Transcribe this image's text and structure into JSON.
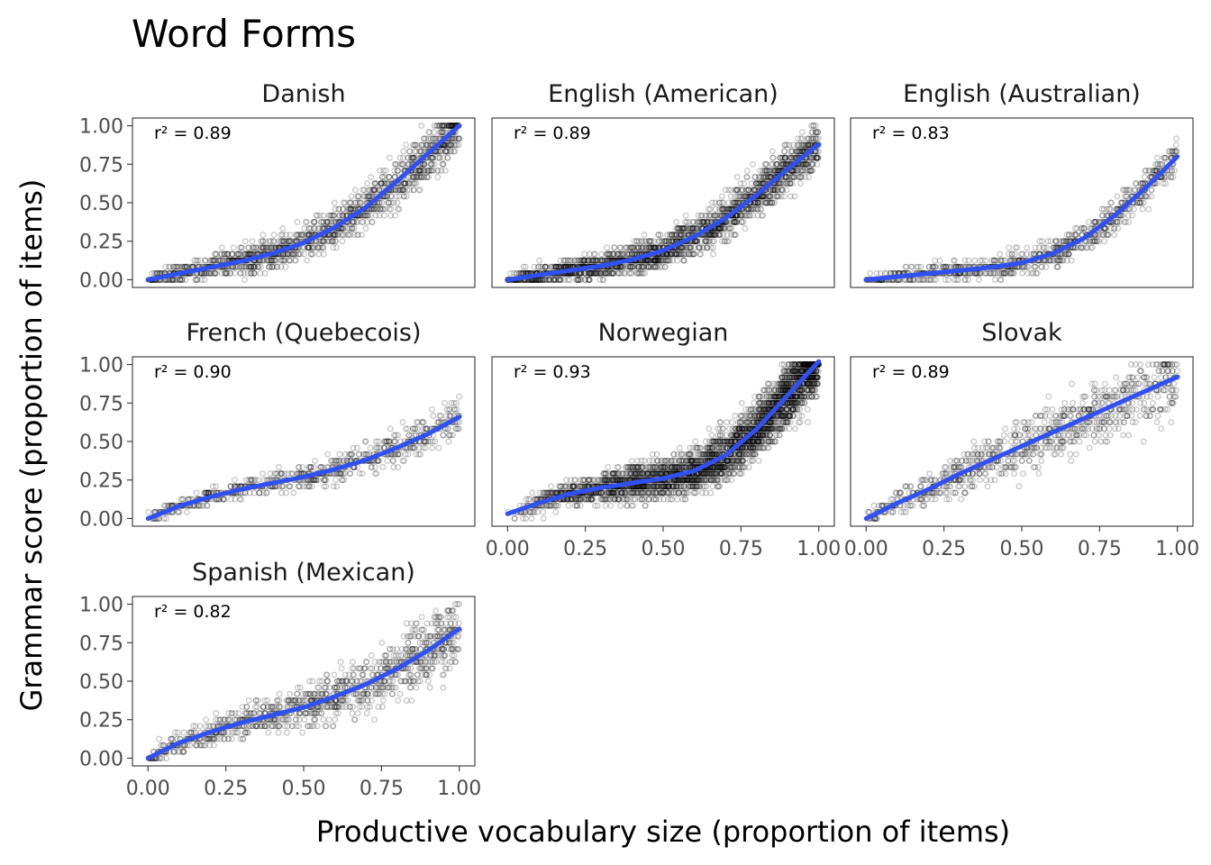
{
  "chart_data": {
    "type": "scatter",
    "title": "Word Forms",
    "xlabel": "Productive vocabulary size (proportion of items)",
    "ylabel": "Grammar score (proportion of items)",
    "xlim": [
      0,
      1
    ],
    "ylim": [
      0,
      1
    ],
    "x_ticks": [
      "0.00",
      "0.25",
      "0.50",
      "0.75",
      "1.00"
    ],
    "y_ticks": [
      "0.00",
      "0.25",
      "0.50",
      "0.75",
      "1.00"
    ],
    "grid": false,
    "point_color": "#000000",
    "trend_color": "#3050f0",
    "panels": [
      {
        "name": "Danish",
        "r2": "r² = 0.89",
        "trend": [
          [
            0,
            0
          ],
          [
            0.1,
            0.04
          ],
          [
            0.2,
            0.08
          ],
          [
            0.3,
            0.12
          ],
          [
            0.4,
            0.17
          ],
          [
            0.5,
            0.24
          ],
          [
            0.6,
            0.34
          ],
          [
            0.7,
            0.47
          ],
          [
            0.8,
            0.64
          ],
          [
            0.9,
            0.82
          ],
          [
            1,
            1
          ]
        ]
      },
      {
        "name": "English (American)",
        "r2": "r² = 0.89",
        "trend": [
          [
            0,
            0
          ],
          [
            0.1,
            0.03
          ],
          [
            0.2,
            0.06
          ],
          [
            0.3,
            0.09
          ],
          [
            0.4,
            0.13
          ],
          [
            0.5,
            0.19
          ],
          [
            0.6,
            0.28
          ],
          [
            0.7,
            0.4
          ],
          [
            0.8,
            0.55
          ],
          [
            0.9,
            0.72
          ],
          [
            1,
            0.88
          ]
        ]
      },
      {
        "name": "English (Australian)",
        "r2": "r² = 0.83",
        "trend": [
          [
            0,
            0
          ],
          [
            0.1,
            0.02
          ],
          [
            0.2,
            0.04
          ],
          [
            0.3,
            0.06
          ],
          [
            0.4,
            0.08
          ],
          [
            0.5,
            0.11
          ],
          [
            0.6,
            0.17
          ],
          [
            0.7,
            0.27
          ],
          [
            0.8,
            0.42
          ],
          [
            0.9,
            0.6
          ],
          [
            1,
            0.8
          ]
        ]
      },
      {
        "name": "French (Quebecois)",
        "r2": "r² = 0.90",
        "trend": [
          [
            0,
            0
          ],
          [
            0.1,
            0.08
          ],
          [
            0.2,
            0.14
          ],
          [
            0.3,
            0.19
          ],
          [
            0.4,
            0.23
          ],
          [
            0.5,
            0.27
          ],
          [
            0.6,
            0.32
          ],
          [
            0.7,
            0.38
          ],
          [
            0.8,
            0.46
          ],
          [
            0.9,
            0.55
          ],
          [
            1,
            0.66
          ]
        ]
      },
      {
        "name": "Norwegian",
        "r2": "r² = 0.93",
        "trend": [
          [
            0,
            0.03
          ],
          [
            0.1,
            0.1
          ],
          [
            0.2,
            0.16
          ],
          [
            0.3,
            0.2
          ],
          [
            0.4,
            0.23
          ],
          [
            0.5,
            0.26
          ],
          [
            0.6,
            0.31
          ],
          [
            0.7,
            0.41
          ],
          [
            0.8,
            0.58
          ],
          [
            0.9,
            0.8
          ],
          [
            1,
            1.02
          ]
        ]
      },
      {
        "name": "Slovak",
        "r2": "r² = 0.89",
        "trend": [
          [
            0,
            0
          ],
          [
            0.1,
            0.1
          ],
          [
            0.2,
            0.19
          ],
          [
            0.3,
            0.29
          ],
          [
            0.4,
            0.38
          ],
          [
            0.5,
            0.47
          ],
          [
            0.6,
            0.56
          ],
          [
            0.7,
            0.65
          ],
          [
            0.8,
            0.74
          ],
          [
            0.9,
            0.83
          ],
          [
            1,
            0.92
          ]
        ]
      },
      {
        "name": "Spanish (Mexican)",
        "r2": "r² = 0.82",
        "trend": [
          [
            0,
            0
          ],
          [
            0.1,
            0.1
          ],
          [
            0.2,
            0.17
          ],
          [
            0.3,
            0.23
          ],
          [
            0.4,
            0.28
          ],
          [
            0.5,
            0.33
          ],
          [
            0.6,
            0.4
          ],
          [
            0.7,
            0.48
          ],
          [
            0.8,
            0.58
          ],
          [
            0.9,
            0.7
          ],
          [
            1,
            0.84
          ]
        ]
      }
    ]
  }
}
